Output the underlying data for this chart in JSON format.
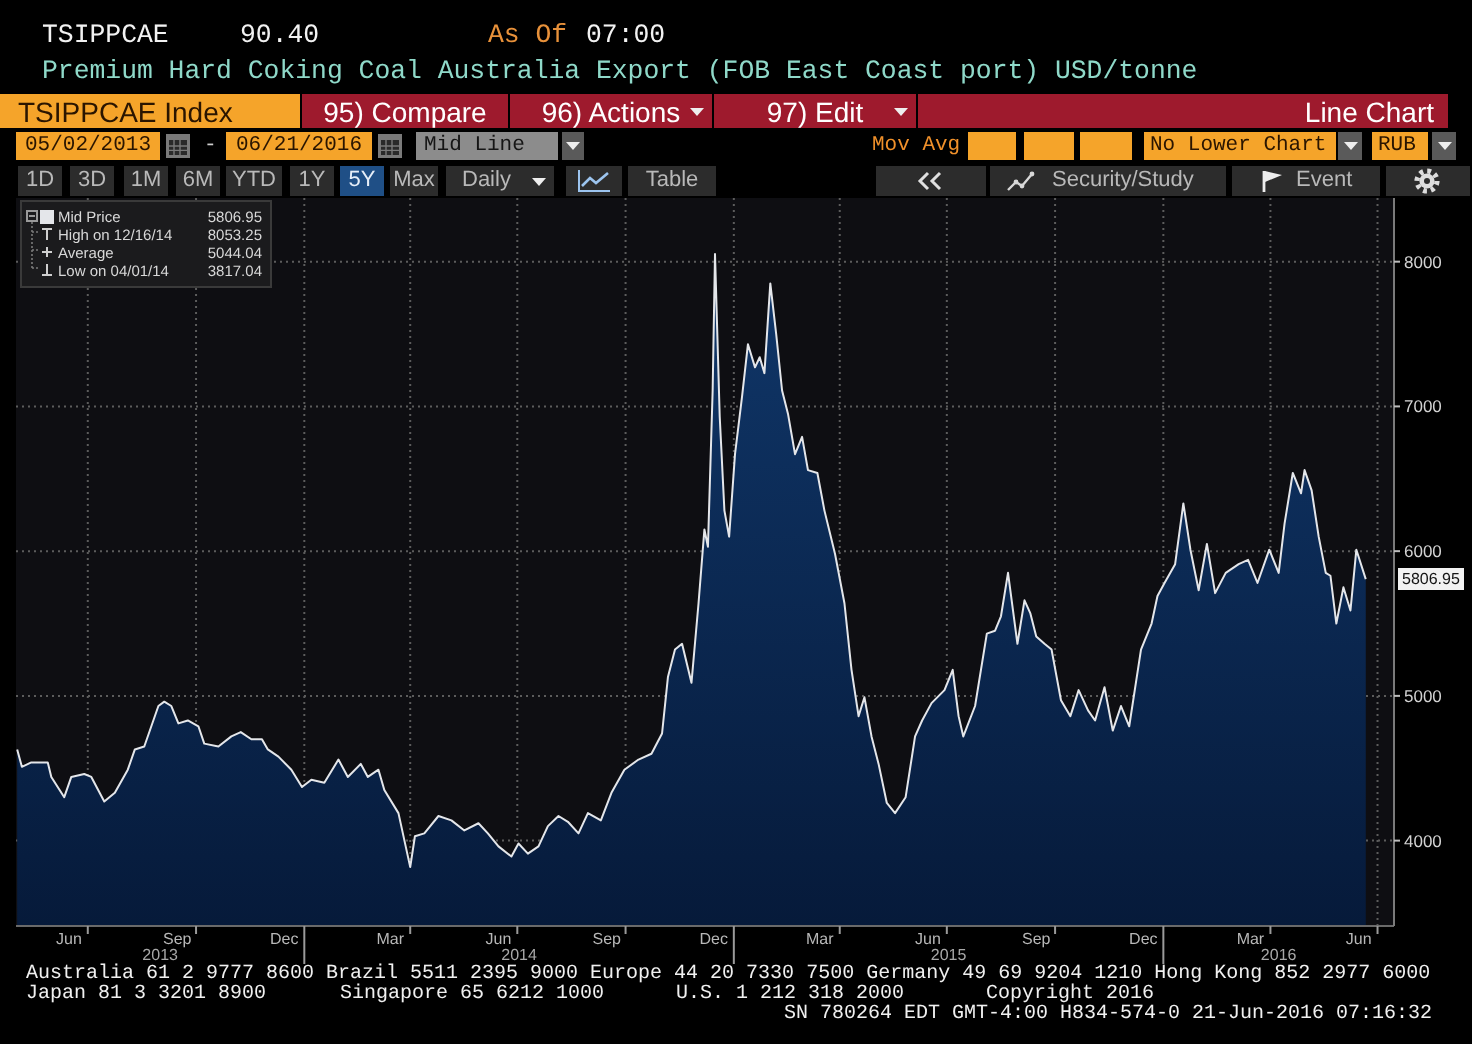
{
  "chart_data": {
    "type": "area",
    "title": "Premium Hard Coking Coal Australia Export (FOB East Coast port) USD/tonne",
    "x": [
      "2013-05-02",
      "2013-05-06",
      "2013-05-14",
      "2013-05-28",
      "2013-05-31",
      "2013-06-11",
      "2013-06-17",
      "2013-06-28",
      "2013-07-04",
      "2013-07-15",
      "2013-07-24",
      "2013-08-04",
      "2013-08-10",
      "2013-08-18",
      "2013-08-30",
      "2013-09-04",
      "2013-09-10",
      "2013-09-16",
      "2013-09-24",
      "2013-10-03",
      "2013-10-08",
      "2013-10-20",
      "2013-10-31",
      "2013-11-08",
      "2013-11-17",
      "2013-11-26",
      "2013-12-01",
      "2013-12-10",
      "2013-12-21",
      "2013-12-30",
      "2014-01-07",
      "2014-01-18",
      "2014-01-30",
      "2014-02-07",
      "2014-02-18",
      "2014-02-24",
      "2014-03-05",
      "2014-03-10",
      "2014-03-22",
      "2014-04-01",
      "2014-04-05",
      "2014-04-13",
      "2014-04-25",
      "2014-05-06",
      "2014-05-17",
      "2014-05-29",
      "2014-06-06",
      "2014-06-15",
      "2014-06-26",
      "2014-07-02",
      "2014-07-10",
      "2014-07-19",
      "2014-07-27",
      "2014-08-05",
      "2014-08-13",
      "2014-08-22",
      "2014-08-30",
      "2014-09-10",
      "2014-09-19",
      "2014-09-30",
      "2014-10-12",
      "2014-10-23",
      "2014-11-01",
      "2014-11-06",
      "2014-11-12",
      "2014-11-18",
      "2014-11-26",
      "2014-12-02",
      "2014-12-07",
      "2014-12-10",
      "2014-12-14",
      "2014-12-16",
      "2014-12-20",
      "2014-12-24",
      "2014-12-28",
      "2015-01-02",
      "2015-01-08",
      "2015-01-13",
      "2015-01-19",
      "2015-01-23",
      "2015-01-27",
      "2015-02-01",
      "2015-02-06",
      "2015-02-11",
      "2015-02-16",
      "2015-02-22",
      "2015-02-28",
      "2015-03-05",
      "2015-03-13",
      "2015-03-19",
      "2015-03-28",
      "2015-04-05",
      "2015-04-11",
      "2015-04-17",
      "2015-04-22",
      "2015-04-28",
      "2015-05-04",
      "2015-05-11",
      "2015-05-18",
      "2015-05-27",
      "2015-06-04",
      "2015-06-10",
      "2015-06-18",
      "2015-06-29",
      "2015-07-06",
      "2015-07-11",
      "2015-07-15",
      "2015-07-25",
      "2015-08-04",
      "2015-08-11",
      "2015-08-16",
      "2015-08-22",
      "2015-08-30",
      "2015-09-05",
      "2015-09-10",
      "2015-09-15",
      "2015-09-22",
      "2015-09-28",
      "2015-10-06",
      "2015-10-14",
      "2015-10-21",
      "2015-10-29",
      "2015-11-04",
      "2015-11-12",
      "2015-11-19",
      "2015-11-26",
      "2015-12-03",
      "2015-12-13",
      "2015-12-22",
      "2015-12-27",
      "2016-01-02",
      "2016-01-11",
      "2016-01-18",
      "2016-01-24",
      "2016-01-31",
      "2016-02-07",
      "2016-02-14",
      "2016-02-23",
      "2016-03-05",
      "2016-03-13",
      "2016-03-21",
      "2016-03-31",
      "2016-04-08",
      "2016-04-13",
      "2016-04-20",
      "2016-04-27",
      "2016-04-30",
      "2016-05-06",
      "2016-05-12",
      "2016-05-18",
      "2016-05-22",
      "2016-05-27",
      "2016-06-02",
      "2016-06-08",
      "2016-06-13",
      "2016-06-21"
    ],
    "series": [
      {
        "name": "Mid Price",
        "color": "#e4e6ea",
        "values": [
          4630,
          4510,
          4540,
          4540,
          4440,
          4300,
          4440,
          4460,
          4440,
          4270,
          4330,
          4490,
          4630,
          4650,
          4930,
          4960,
          4930,
          4810,
          4830,
          4790,
          4670,
          4650,
          4720,
          4750,
          4700,
          4700,
          4630,
          4580,
          4490,
          4370,
          4420,
          4400,
          4560,
          4440,
          4530,
          4440,
          4490,
          4350,
          4190,
          3817.04,
          4030,
          4050,
          4170,
          4140,
          4070,
          4120,
          4050,
          3960,
          3890,
          3980,
          3910,
          3960,
          4100,
          4170,
          4130,
          4050,
          4190,
          4140,
          4330,
          4490,
          4560,
          4600,
          4740,
          5130,
          5320,
          5360,
          5090,
          5640,
          6150,
          6030,
          7110,
          8053.25,
          6930,
          6280,
          6100,
          6670,
          7070,
          7430,
          7270,
          7340,
          7230,
          7850,
          7500,
          7110,
          6950,
          6670,
          6790,
          6560,
          6540,
          6280,
          5980,
          5640,
          5180,
          4860,
          4990,
          4720,
          4530,
          4260,
          4190,
          4300,
          4720,
          4830,
          4950,
          5040,
          5180,
          4860,
          4720,
          4930,
          5430,
          5450,
          5550,
          5850,
          5360,
          5660,
          5570,
          5410,
          5360,
          5320,
          4970,
          4860,
          5040,
          4900,
          4830,
          5060,
          4760,
          4930,
          4790,
          5320,
          5500,
          5690,
          5780,
          5910,
          6330,
          6010,
          5730,
          6050,
          5710,
          5850,
          5910,
          5940,
          5780,
          6010,
          5850,
          6190,
          6540,
          6400,
          6560,
          6420,
          6100,
          5850,
          5830,
          5500,
          5750,
          5590,
          6010,
          5806.95
        ]
      }
    ],
    "xlim": [
      "2013-05-01",
      "2016-07-15"
    ],
    "xticks": [
      {
        "value": "2013-06-15",
        "label": "Jun"
      },
      {
        "value": "2013-07-01",
        "label": null
      },
      {
        "value": "2013-09-15",
        "label": "Sep"
      },
      {
        "value": "2013-10-01",
        "label": null
      },
      {
        "value": "2013-12-15",
        "label": "Dec"
      },
      {
        "value": "2014-01-01",
        "label": null
      },
      {
        "value": "2014-03-15",
        "label": "Mar"
      },
      {
        "value": "2014-04-01",
        "label": null
      },
      {
        "value": "2014-06-15",
        "label": "Jun"
      },
      {
        "value": "2014-07-01",
        "label": null
      },
      {
        "value": "2014-09-15",
        "label": "Sep"
      },
      {
        "value": "2014-10-01",
        "label": null
      },
      {
        "value": "2014-12-15",
        "label": "Dec"
      },
      {
        "value": "2015-01-01",
        "label": null
      },
      {
        "value": "2015-03-15",
        "label": "Mar"
      },
      {
        "value": "2015-04-01",
        "label": null
      },
      {
        "value": "2015-06-15",
        "label": "Jun"
      },
      {
        "value": "2015-07-01",
        "label": null
      },
      {
        "value": "2015-09-15",
        "label": "Sep"
      },
      {
        "value": "2015-10-01",
        "label": null
      },
      {
        "value": "2015-12-15",
        "label": "Dec"
      },
      {
        "value": "2016-01-01",
        "label": null
      },
      {
        "value": "2016-03-15",
        "label": "Mar"
      },
      {
        "value": "2016-04-01",
        "label": null
      },
      {
        "value": "2016-06-15",
        "label": "Jun"
      },
      {
        "value": "2016-07-01",
        "label": null
      }
    ],
    "ylim": [
      3410,
      8440
    ],
    "yticks": [
      4000,
      5000,
      6000,
      7000,
      8000
    ],
    "grid": true,
    "legend": "top left",
    "annotations": [
      "TSIPPCAE",
      "90.40",
      "As Of",
      "07:00",
      "TSIPPCAE Index",
      "95) Compare",
      "96) Actions",
      "97) Edit",
      "Line Chart",
      "05/02/2013",
      "-",
      "06/21/2016",
      "Mid Line",
      "Mov Avg",
      "No Lower Chart",
      "RUB",
      "1D",
      "3D",
      "1M",
      "6M",
      "YTD",
      "1Y",
      "5Y",
      "Max",
      "Daily",
      "Table",
      "Security/Study",
      "Event",
      "5806.95",
      "High on 12/16/14",
      "8053.25",
      "Average",
      "5044.04",
      "Low on 04/01/14",
      "3817.04",
      {
        "text": "5806.95",
        "x": "2016-06-21",
        "y": 5806.95
      },
      "2013",
      "2014",
      "2015",
      "2016",
      "Australia 61 2 9777 8600 Brazil 5511 2395 9000 Europe 44 20 7330 7500 Germany 49 69 9204 1210 Hong Kong 852 2977 6000",
      "Japan 81 3 3201 8900",
      "Singapore 65 6212 1000",
      "U.S. 1 212 318 2000",
      "Copyright 2016",
      "SN 780264 EDT  GMT-4:00 H834-574-0 21-Jun-2016 07:16:32"
    ]
  }
}
